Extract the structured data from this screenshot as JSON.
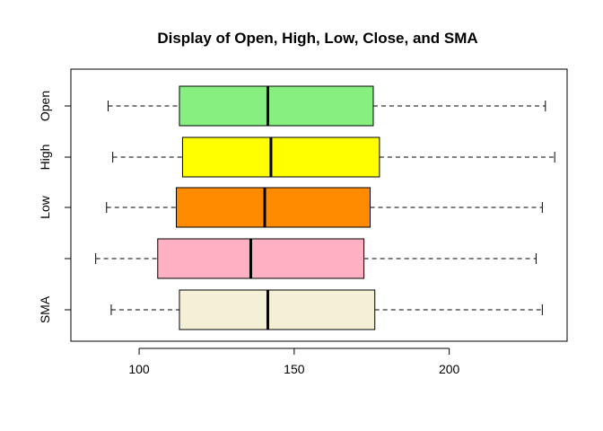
{
  "chart_data": {
    "type": "boxplot",
    "orientation": "horizontal",
    "title": "Display of Open, High, Low, Close, and SMA",
    "xlabel": "",
    "ylabel": "",
    "xlim": [
      78,
      238
    ],
    "x_ticks": [
      100,
      150,
      200
    ],
    "grid": false,
    "legend": "none",
    "categories": [
      "Open",
      "High",
      "Low",
      "",
      "SMA"
    ],
    "boxes": [
      {
        "label": "Open",
        "whisker_low": 90,
        "q1": 113,
        "median": 141.5,
        "q3": 175.5,
        "whisker_high": 231,
        "color": "#86ef80"
      },
      {
        "label": "High",
        "whisker_low": 91.5,
        "q1": 114,
        "median": 142.5,
        "q3": 177.5,
        "whisker_high": 234,
        "color": "#ffff00"
      },
      {
        "label": "Low",
        "whisker_low": 89.5,
        "q1": 112,
        "median": 140.5,
        "q3": 174.5,
        "whisker_high": 230,
        "color": "#ff8c00"
      },
      {
        "label": "",
        "whisker_low": 86,
        "q1": 106,
        "median": 136,
        "q3": 172.5,
        "whisker_high": 228,
        "color": "#ffb0c2"
      },
      {
        "label": "SMA",
        "whisker_low": 91,
        "q1": 113,
        "median": 141.5,
        "q3": 176,
        "whisker_high": 230,
        "color": "#f3f0d6"
      }
    ]
  }
}
